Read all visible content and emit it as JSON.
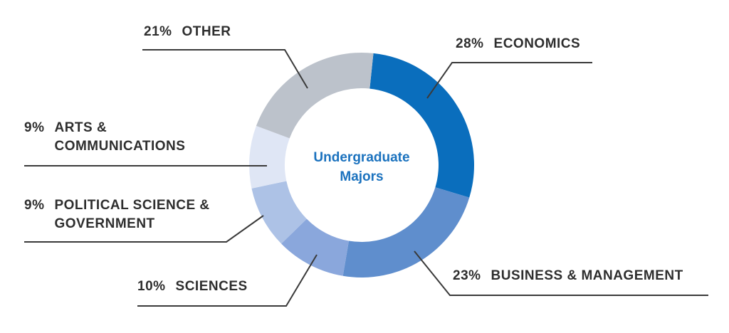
{
  "chart_data": {
    "type": "donut",
    "title": "Undergraduate Majors",
    "categories": [
      "ECONOMICS",
      "BUSINESS & MANAGEMENT",
      "SCIENCES",
      "POLITICAL SCIENCE & GOVERNMENT",
      "ARTS & COMMUNICATIONS",
      "OTHER"
    ],
    "values": [
      28,
      23,
      10,
      9,
      9,
      21
    ],
    "value_labels": [
      "28%",
      "23%",
      "10%",
      "9%",
      "9%",
      "21%"
    ],
    "colors": [
      "#0a6ebd",
      "#5f8ecd",
      "#8aa7dc",
      "#adc2e6",
      "#dfe6f5",
      "#bcc2cb"
    ]
  }
}
